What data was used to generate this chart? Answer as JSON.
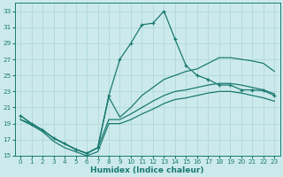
{
  "xlabel": "Humidex (Indice chaleur)",
  "bg_color": "#cceaec",
  "line_color": "#1a7a70",
  "grid_color": "#b0d8da",
  "xlim": [
    -0.5,
    23.5
  ],
  "ylim": [
    15,
    34
  ],
  "yticks": [
    15,
    17,
    19,
    21,
    23,
    25,
    27,
    29,
    31,
    33
  ],
  "xticks": [
    0,
    1,
    2,
    3,
    4,
    5,
    6,
    7,
    8,
    9,
    10,
    11,
    12,
    13,
    14,
    15,
    16,
    17,
    18,
    19,
    20,
    21,
    22,
    23
  ],
  "lines": [
    {
      "x": [
        0,
        1,
        2,
        3,
        4,
        5,
        6,
        7,
        8,
        9,
        10,
        11,
        12,
        13,
        14,
        15,
        16,
        17,
        18,
        19,
        20,
        21,
        22,
        23
      ],
      "y": [
        20.0,
        19.0,
        18.2,
        17.2,
        16.5,
        15.8,
        15.3,
        16.0,
        22.5,
        27.0,
        29.0,
        31.3,
        31.5,
        33.0,
        29.5,
        26.2,
        25.0,
        24.5,
        23.8,
        23.8,
        23.2,
        23.2,
        23.1,
        22.5
      ],
      "marker": true
    },
    {
      "x": [
        0,
        1,
        2,
        3,
        4,
        5,
        6,
        7,
        8,
        9,
        10,
        11,
        12,
        13,
        14,
        15,
        16,
        17,
        18,
        19,
        20,
        21,
        22,
        23
      ],
      "y": [
        20.0,
        19.0,
        18.2,
        17.2,
        16.5,
        15.8,
        15.3,
        16.0,
        22.3,
        19.8,
        21.0,
        22.5,
        23.5,
        24.5,
        25.0,
        25.5,
        25.8,
        26.5,
        27.2,
        27.2,
        27.0,
        26.8,
        26.5,
        25.5
      ],
      "marker": false
    },
    {
      "x": [
        0,
        1,
        2,
        3,
        4,
        5,
        6,
        7,
        8,
        9,
        10,
        11,
        12,
        13,
        14,
        15,
        16,
        17,
        18,
        19,
        20,
        21,
        22,
        23
      ],
      "y": [
        19.5,
        19.0,
        18.2,
        17.2,
        16.5,
        15.8,
        15.3,
        16.0,
        19.5,
        19.5,
        20.2,
        21.0,
        21.8,
        22.5,
        23.0,
        23.2,
        23.5,
        23.8,
        24.0,
        24.0,
        23.8,
        23.5,
        23.2,
        22.7
      ],
      "marker": false
    },
    {
      "x": [
        0,
        1,
        2,
        3,
        4,
        5,
        6,
        7,
        8,
        9,
        10,
        11,
        12,
        13,
        14,
        15,
        16,
        17,
        18,
        19,
        20,
        21,
        22,
        23
      ],
      "y": [
        19.5,
        18.8,
        18.0,
        16.8,
        16.0,
        15.5,
        15.0,
        15.5,
        19.0,
        19.0,
        19.5,
        20.2,
        20.8,
        21.5,
        22.0,
        22.2,
        22.5,
        22.8,
        23.0,
        23.0,
        22.8,
        22.5,
        22.2,
        21.8
      ],
      "marker": false
    }
  ]
}
